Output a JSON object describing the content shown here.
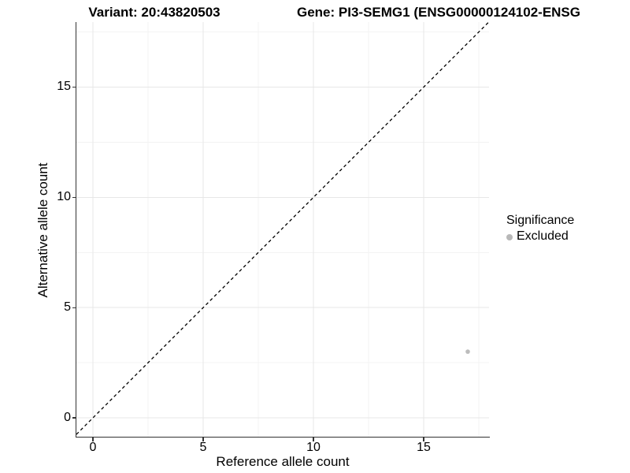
{
  "figure": {
    "variant_title": "Variant: 20:43820503",
    "gene_title": "Gene: PI3-SEMG1 (ENSG00000124102-ENSG"
  },
  "chart_data": {
    "type": "scatter",
    "title": "Variant: 20:43820503",
    "subtitle_right": "Gene: PI3-SEMG1 (ENSG00000124102-ENSG",
    "xlabel": "Reference allele count",
    "ylabel": "Alternative allele count",
    "x_ticks": [
      "0",
      "5",
      "10",
      "15"
    ],
    "y_ticks": [
      "0",
      "5",
      "10",
      "15"
    ],
    "xlim": [
      -0.75,
      17.95
    ],
    "ylim": [
      -0.9,
      17.95
    ],
    "grid": "major every 5, minor every 2.5, light gray, white background",
    "identity_line": {
      "style": "dashed",
      "color": "#000000",
      "slope": 1,
      "intercept": 0
    },
    "points": [
      {
        "x": 17,
        "y": 3,
        "group": "Excluded",
        "color": "#bcbcbc"
      }
    ],
    "legend": {
      "title": "Significance",
      "position": "right",
      "entries": [
        {
          "label": "Excluded",
          "color": "#b8b8b8"
        }
      ]
    }
  },
  "colors": {
    "background": "#ffffff",
    "major_grid": "#e7e7e7",
    "minor_grid": "#f3f3f3",
    "axis_line": "#333333",
    "text": "#000000"
  }
}
